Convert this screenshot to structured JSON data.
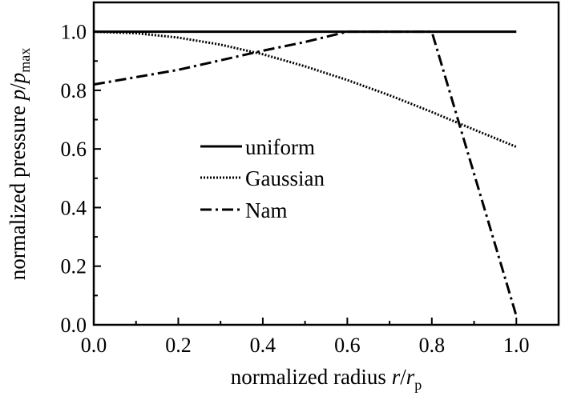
{
  "chart_data": {
    "type": "line",
    "xlabel": "normalized radius r/r_p",
    "xlabel_parts": {
      "prefix": "normalized radius ",
      "var": "r",
      "slash": "/",
      "var2": "r",
      "sub": "p"
    },
    "ylabel": "normalized pressure p/p_max",
    "ylabel_parts": {
      "prefix": "normalized pressure ",
      "var": "p",
      "slash": "/",
      "var2": "p",
      "sub": "max"
    },
    "xlim": [
      0.0,
      1.1
    ],
    "ylim": [
      0.0,
      1.1
    ],
    "x_ticks": [
      "0.0",
      "0.2",
      "0.4",
      "0.6",
      "0.8",
      "1.0"
    ],
    "y_ticks": [
      "0.0",
      "0.2",
      "0.4",
      "0.6",
      "0.8",
      "1.0"
    ],
    "grid": false,
    "legend_position": "center",
    "series": [
      {
        "name": "uniform",
        "style": "solid",
        "x": [
          0.0,
          1.0
        ],
        "y": [
          1.0,
          1.0
        ]
      },
      {
        "name": "Gaussian",
        "style": "dotted",
        "x": [
          0.0,
          0.1,
          0.2,
          0.3,
          0.4,
          0.5,
          0.6,
          0.7,
          0.8,
          0.9,
          1.0
        ],
        "y": [
          1.0,
          0.995,
          0.98,
          0.956,
          0.923,
          0.882,
          0.835,
          0.783,
          0.726,
          0.666,
          0.607
        ]
      },
      {
        "name": "Nam",
        "style": "dashdot",
        "x": [
          0.0,
          0.2,
          0.4,
          0.5,
          0.6,
          0.8,
          1.0
        ],
        "y": [
          0.82,
          0.87,
          0.935,
          0.965,
          1.0,
          1.0,
          0.03
        ]
      }
    ]
  }
}
